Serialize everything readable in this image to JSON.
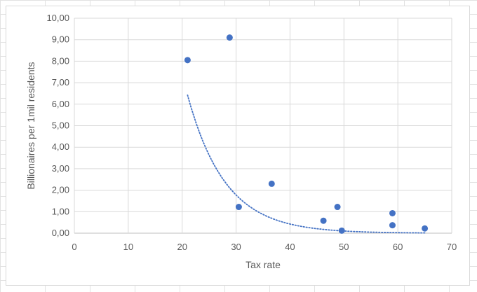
{
  "chart_data": {
    "type": "scatter",
    "title": "",
    "xlabel": "Tax rate",
    "ylabel": "Billionaires per 1mil residents",
    "xlim": [
      0,
      70
    ],
    "ylim": [
      0,
      10
    ],
    "xticks": [
      "0",
      "10",
      "20",
      "30",
      "40",
      "50",
      "60",
      "70"
    ],
    "yticks": [
      "0,00",
      "1,00",
      "2,00",
      "3,00",
      "4,00",
      "5,00",
      "6,00",
      "7,00",
      "8,00",
      "9,00",
      "10,00"
    ],
    "grid": true,
    "legend": "none",
    "series": [
      {
        "points": [
          {
            "x": 21.0,
            "y": 8.05
          },
          {
            "x": 28.8,
            "y": 9.1
          },
          {
            "x": 30.5,
            "y": 1.22
          },
          {
            "x": 36.6,
            "y": 2.3
          },
          {
            "x": 46.2,
            "y": 0.58
          },
          {
            "x": 48.8,
            "y": 1.22
          },
          {
            "x": 49.6,
            "y": 0.12
          },
          {
            "x": 59.0,
            "y": 0.93
          },
          {
            "x": 59.0,
            "y": 0.37
          },
          {
            "x": 65.0,
            "y": 0.22
          }
        ],
        "color": "#4472c4"
      }
    ],
    "trendline": {
      "type": "exponential",
      "x_range": [
        21.0,
        65.0
      ],
      "a": 128.8,
      "b": -0.1428,
      "color": "#4472c4",
      "style": "dotted"
    }
  }
}
